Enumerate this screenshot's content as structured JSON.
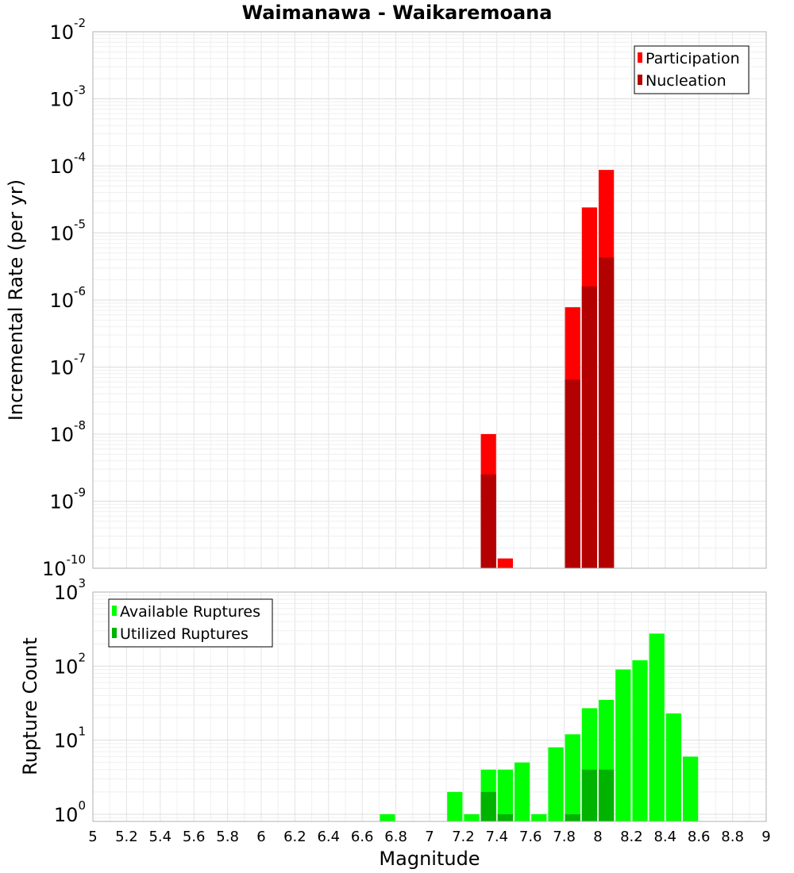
{
  "title": "Waimanawa - Waikaremoana",
  "chart_data": [
    {
      "type": "bar",
      "panel": "top",
      "ylabel": "Incremental Rate (per yr)",
      "xlim": [
        5,
        9
      ],
      "ylim_exp": [
        -10,
        -2
      ],
      "yscale": "log",
      "grid": true,
      "legend_position": "top-right",
      "bin_width": 0.1,
      "series": [
        {
          "name": "Participation",
          "color": "#ff0000",
          "points": [
            {
              "x": 7.35,
              "y": 1e-08
            },
            {
              "x": 7.45,
              "y": 1.4e-10
            },
            {
              "x": 7.85,
              "y": 7.8e-07
            },
            {
              "x": 7.95,
              "y": 2.4e-05
            },
            {
              "x": 8.05,
              "y": 8.7e-05
            }
          ]
        },
        {
          "name": "Nucleation",
          "color": "#b30000",
          "points": [
            {
              "x": 7.35,
              "y": 2.5e-09
            },
            {
              "x": 7.85,
              "y": 6.5e-08
            },
            {
              "x": 7.95,
              "y": 1.6e-06
            },
            {
              "x": 8.05,
              "y": 4.3e-06
            }
          ]
        }
      ]
    },
    {
      "type": "bar",
      "panel": "bottom",
      "ylabel": "Rupture Count",
      "xlabel": "Magnitude",
      "xlim": [
        5,
        9
      ],
      "ylim": [
        0.8,
        1000
      ],
      "ylim_exp": [
        0,
        3
      ],
      "yscale": "log",
      "grid": true,
      "legend_position": "top-left",
      "bin_width": 0.1,
      "x_ticks": [
        "5",
        "5.2",
        "5.4",
        "5.6",
        "5.8",
        "6",
        "6.2",
        "6.4",
        "6.6",
        "6.8",
        "7",
        "7.2",
        "7.4",
        "7.6",
        "7.8",
        "8",
        "8.2",
        "8.4",
        "8.6",
        "8.8",
        "9"
      ],
      "series": [
        {
          "name": "Available Ruptures",
          "color": "#00ff00",
          "points": [
            {
              "x": 6.75,
              "y": 1
            },
            {
              "x": 7.15,
              "y": 2
            },
            {
              "x": 7.25,
              "y": 1
            },
            {
              "x": 7.35,
              "y": 4
            },
            {
              "x": 7.45,
              "y": 4
            },
            {
              "x": 7.55,
              "y": 5
            },
            {
              "x": 7.65,
              "y": 1
            },
            {
              "x": 7.75,
              "y": 8
            },
            {
              "x": 7.85,
              "y": 12
            },
            {
              "x": 7.95,
              "y": 27
            },
            {
              "x": 8.05,
              "y": 35
            },
            {
              "x": 8.15,
              "y": 90
            },
            {
              "x": 8.25,
              "y": 120
            },
            {
              "x": 8.35,
              "y": 275
            },
            {
              "x": 8.45,
              "y": 23
            },
            {
              "x": 8.55,
              "y": 6
            }
          ]
        },
        {
          "name": "Utilized Ruptures",
          "color": "#00b300",
          "points": [
            {
              "x": 7.35,
              "y": 2
            },
            {
              "x": 7.45,
              "y": 1
            },
            {
              "x": 7.85,
              "y": 1
            },
            {
              "x": 7.95,
              "y": 4
            },
            {
              "x": 8.05,
              "y": 4
            }
          ]
        }
      ]
    }
  ]
}
